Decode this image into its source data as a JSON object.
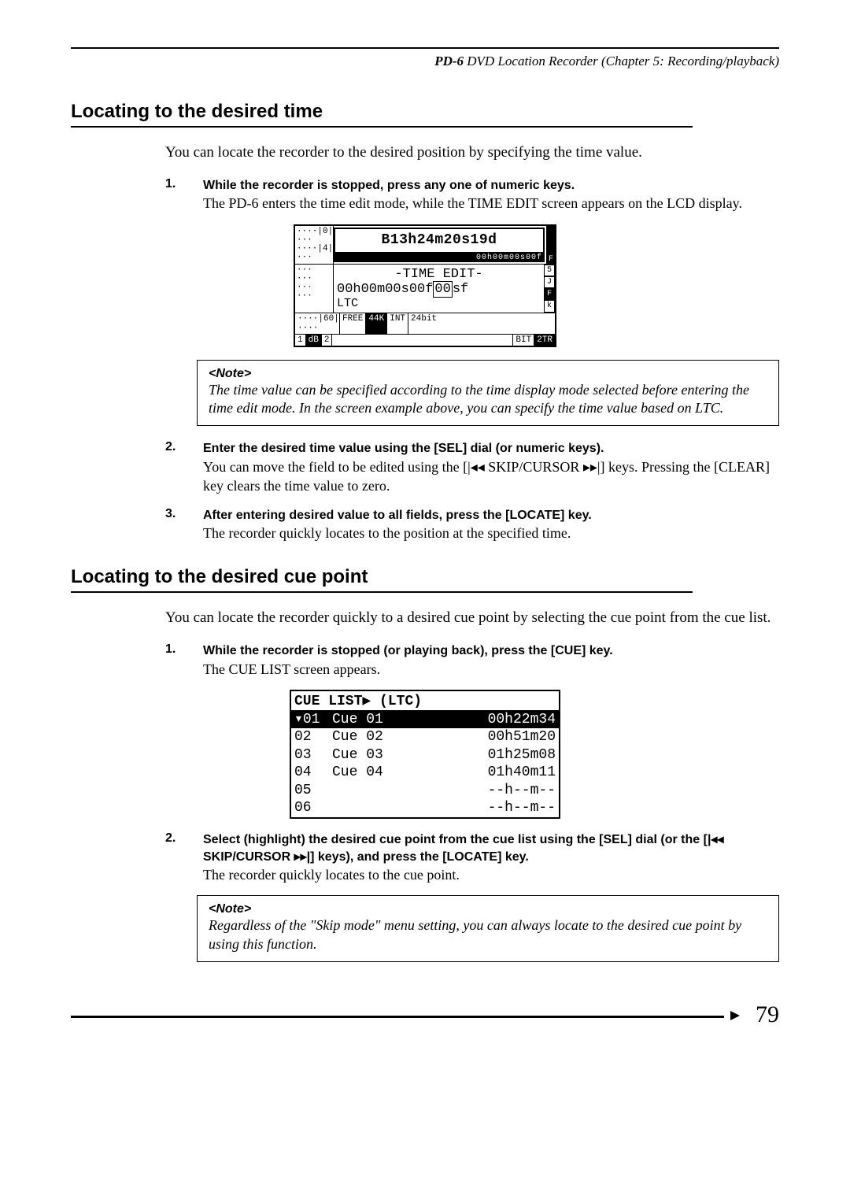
{
  "running_head": {
    "bold": "PD-6",
    "rest": " DVD Location Recorder (Chapter 5: Recording/playback)"
  },
  "section1": {
    "title": "Locating to the desired time",
    "intro": "You can locate the recorder to the desired position by specifying the time value.",
    "step1": {
      "num": "1.",
      "head": "While the recorder is stopped, press any one of numeric keys.",
      "body": "The PD-6 enters the time edit mode, while the TIME EDIT screen appears on the LCD display."
    },
    "lcd": {
      "big_tc": "B13h24m20s19d",
      "sub_tc": "00h00m00s00f",
      "title": "-TIME EDIT-",
      "edit_prefix": "00h00m00s00f",
      "edit_box": "00",
      "edit_suffix": "sf",
      "ltc": "LTC",
      "side": [
        "5",
        "J",
        "F",
        "k"
      ],
      "status_row1": [
        "60",
        "FREE",
        "44K",
        "INT",
        "24bit"
      ],
      "status_row2": [
        "1",
        "dB",
        "2",
        "",
        "BIT",
        "2TR"
      ]
    },
    "note": {
      "label": "<Note>",
      "body": "The time value can be specified according to the time display mode selected before entering the time edit mode. In the screen example above, you can specify the time value based on LTC."
    },
    "step2": {
      "num": "2.",
      "head": "Enter the desired time value using the [SEL] dial (or numeric keys).",
      "body_a": "You can move the field to be edited using the [",
      "body_b": " SKIP/CURSOR ",
      "body_c": "] keys. Pressing the [CLEAR] key clears the time value to zero."
    },
    "step3": {
      "num": "3.",
      "head": "After entering desired value to all fields, press the [LOCATE] key.",
      "body": "The recorder quickly locates to the position at the specified time."
    }
  },
  "section2": {
    "title": "Locating to the desired cue point",
    "intro": "You can locate the recorder quickly to a desired cue point by selecting the cue point from the cue list.",
    "step1": {
      "num": "1.",
      "head": "While the recorder is stopped (or playing back), press the [CUE] key.",
      "body": "The CUE LIST screen appears."
    },
    "lcd": {
      "header": "CUE LIST▶ (LTC)",
      "rows": [
        {
          "idx": "▾01",
          "name": "Cue 01",
          "time": "00h22m34",
          "sel": true
        },
        {
          "idx": " 02",
          "name": "Cue 02",
          "time": "00h51m20",
          "sel": false
        },
        {
          "idx": " 03",
          "name": "Cue 03",
          "time": "01h25m08",
          "sel": false
        },
        {
          "idx": " 04",
          "name": "Cue 04",
          "time": "01h40m11",
          "sel": false
        },
        {
          "idx": " 05",
          "name": "",
          "time": "--h--m--",
          "sel": false
        },
        {
          "idx": " 06",
          "name": "",
          "time": "--h--m--",
          "sel": false
        }
      ]
    },
    "step2": {
      "num": "2.",
      "head_a": " Select (highlight) the desired cue point from the cue list using the [SEL] dial (or the [",
      "head_b": " SKIP/CURSOR ",
      "head_c": "] keys), and press the [LOCATE] key.",
      "body": "The recorder quickly locates to the cue point."
    },
    "note": {
      "label": "<Note>",
      "body": "Regardless of the \"Skip mode\" menu setting, you can always locate to the desired cue point by using this function."
    }
  },
  "page_number": "79",
  "icons": {
    "rew": "◂◂",
    "ffw": "▸▸",
    "rew_bar": "|◂◂",
    "ffw_bar": "▸▸|"
  }
}
